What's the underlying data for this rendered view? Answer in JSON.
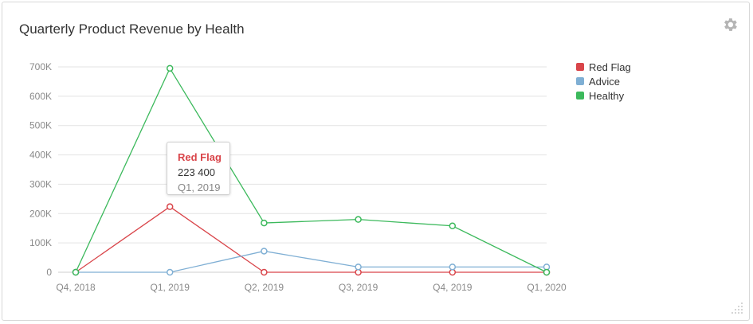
{
  "widget": {
    "title": "Quarterly Product Revenue by Health",
    "settings_icon": "gear-icon",
    "resize_icon": "resize-handle-icon"
  },
  "tooltip": {
    "series": "Red Flag",
    "value": "223 400",
    "category": "Q1, 2019"
  },
  "chart_data": {
    "type": "line",
    "title": "Quarterly Product Revenue by Health",
    "xlabel": "",
    "ylabel": "",
    "categories": [
      "Q4, 2018",
      "Q1, 2019",
      "Q2, 2019",
      "Q3, 2019",
      "Q4, 2019",
      "Q1, 2020"
    ],
    "ylim": [
      0,
      700000
    ],
    "yticks": [
      0,
      100000,
      200000,
      300000,
      400000,
      500000,
      600000,
      700000
    ],
    "ytick_labels": [
      "0",
      "100K",
      "200K",
      "300K",
      "400K",
      "500K",
      "600K",
      "700K"
    ],
    "grid": true,
    "legend_position": "right",
    "series": [
      {
        "name": "Red Flag",
        "color": "#d9454a",
        "values": [
          0,
          223400,
          0,
          0,
          0,
          0
        ]
      },
      {
        "name": "Advice",
        "color": "#7fafd4",
        "values": [
          0,
          0,
          72000,
          18000,
          18000,
          18000
        ]
      },
      {
        "name": "Healthy",
        "color": "#3cb95c",
        "values": [
          0,
          695000,
          168000,
          180000,
          158000,
          0
        ]
      }
    ]
  }
}
